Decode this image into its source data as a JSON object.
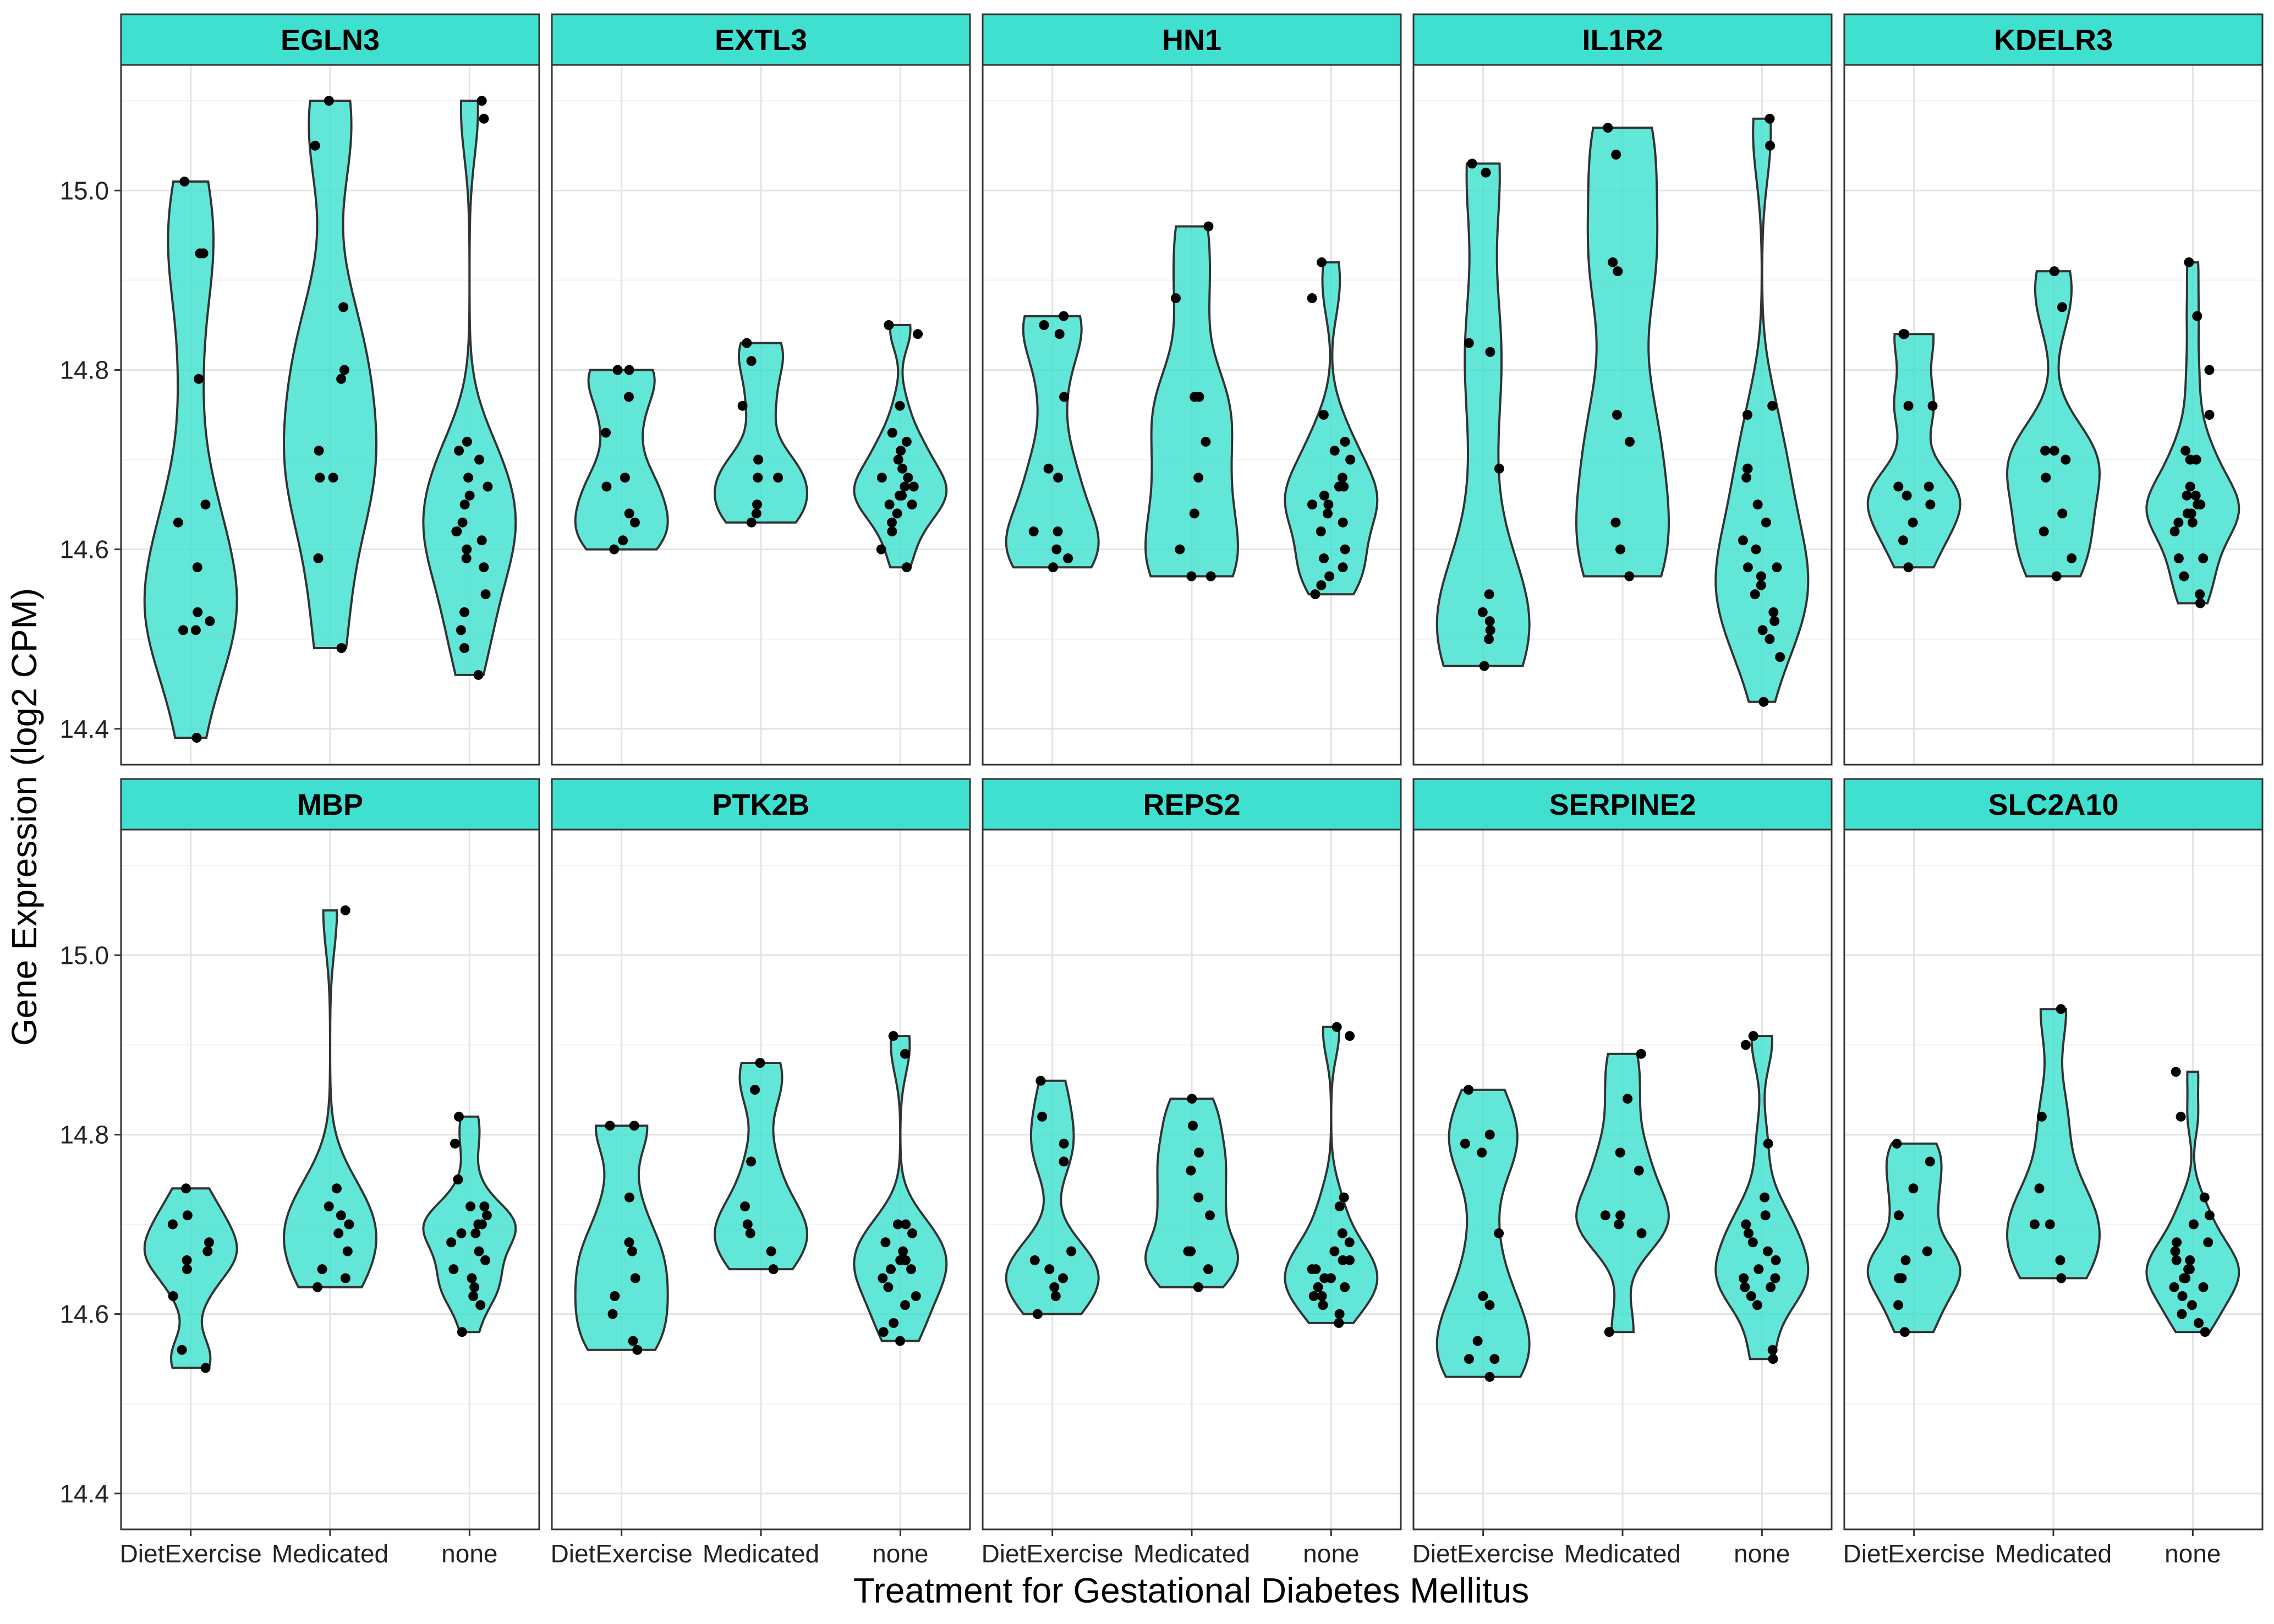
{
  "chart_data": {
    "type": "violin",
    "xlabel": "Treatment for Gestational Diabetes Mellitus",
    "ylabel": "Gene Expression (log2 CPM)",
    "categories": [
      "DietExercise",
      "Medicated",
      "none"
    ],
    "yticks": [
      14.4,
      14.6,
      14.8,
      15.0
    ],
    "ylim": [
      14.36,
      15.14
    ],
    "grid": true,
    "fill_color": "#40E0D0",
    "point_color": "#000000",
    "panels": [
      {
        "gene": "EGLN3",
        "groups": [
          [
            14.39,
            14.51,
            14.51,
            14.52,
            14.53,
            14.58,
            14.63,
            14.65,
            14.79,
            14.93,
            14.93,
            15.01
          ],
          [
            14.49,
            14.59,
            14.68,
            14.68,
            14.71,
            14.79,
            14.8,
            14.87,
            15.05,
            15.1
          ],
          [
            14.46,
            14.49,
            14.51,
            14.53,
            14.55,
            14.58,
            14.59,
            14.6,
            14.61,
            14.62,
            14.62,
            14.63,
            14.65,
            14.66,
            14.67,
            14.68,
            14.7,
            14.71,
            14.72,
            15.08,
            15.1
          ]
        ]
      },
      {
        "gene": "EXTL3",
        "groups": [
          [
            14.6,
            14.61,
            14.63,
            14.64,
            14.67,
            14.68,
            14.73,
            14.77,
            14.8,
            14.8
          ],
          [
            14.63,
            14.64,
            14.65,
            14.68,
            14.68,
            14.7,
            14.76,
            14.81,
            14.83
          ],
          [
            14.58,
            14.6,
            14.62,
            14.63,
            14.64,
            14.65,
            14.65,
            14.66,
            14.66,
            14.67,
            14.67,
            14.68,
            14.68,
            14.69,
            14.7,
            14.71,
            14.72,
            14.73,
            14.76,
            14.84,
            14.85
          ]
        ]
      },
      {
        "gene": "HN1",
        "groups": [
          [
            14.58,
            14.59,
            14.6,
            14.62,
            14.62,
            14.68,
            14.69,
            14.77,
            14.84,
            14.85,
            14.86
          ],
          [
            14.57,
            14.57,
            14.6,
            14.64,
            14.68,
            14.72,
            14.77,
            14.77,
            14.88,
            14.96
          ],
          [
            14.55,
            14.56,
            14.57,
            14.58,
            14.59,
            14.6,
            14.62,
            14.63,
            14.64,
            14.65,
            14.65,
            14.66,
            14.67,
            14.67,
            14.68,
            14.7,
            14.71,
            14.72,
            14.75,
            14.88,
            14.92
          ]
        ]
      },
      {
        "gene": "IL1R2",
        "groups": [
          [
            14.47,
            14.5,
            14.51,
            14.52,
            14.53,
            14.55,
            14.69,
            14.82,
            14.83,
            15.02,
            15.03
          ],
          [
            14.57,
            14.6,
            14.63,
            14.72,
            14.75,
            14.91,
            14.92,
            15.04,
            15.07
          ],
          [
            14.43,
            14.48,
            14.5,
            14.51,
            14.52,
            14.53,
            14.55,
            14.56,
            14.57,
            14.58,
            14.58,
            14.6,
            14.61,
            14.63,
            14.65,
            14.68,
            14.69,
            14.69,
            14.75,
            14.76,
            15.05,
            15.08
          ]
        ]
      },
      {
        "gene": "KDELR3",
        "groups": [
          [
            14.58,
            14.61,
            14.63,
            14.65,
            14.66,
            14.67,
            14.67,
            14.76,
            14.76,
            14.84,
            14.84
          ],
          [
            14.57,
            14.59,
            14.62,
            14.64,
            14.68,
            14.7,
            14.71,
            14.71,
            14.87,
            14.91
          ],
          [
            14.54,
            14.55,
            14.57,
            14.59,
            14.59,
            14.62,
            14.63,
            14.63,
            14.64,
            14.64,
            14.65,
            14.65,
            14.66,
            14.66,
            14.67,
            14.7,
            14.7,
            14.71,
            14.75,
            14.8,
            14.86,
            14.92
          ]
        ]
      },
      {
        "gene": "MBP",
        "groups": [
          [
            14.54,
            14.56,
            14.62,
            14.65,
            14.66,
            14.67,
            14.68,
            14.7,
            14.71,
            14.74
          ],
          [
            14.63,
            14.64,
            14.65,
            14.67,
            14.69,
            14.7,
            14.71,
            14.72,
            14.74,
            15.05
          ],
          [
            14.58,
            14.61,
            14.62,
            14.63,
            14.64,
            14.65,
            14.66,
            14.67,
            14.68,
            14.69,
            14.69,
            14.7,
            14.7,
            14.71,
            14.72,
            14.72,
            14.75,
            14.79,
            14.82
          ]
        ]
      },
      {
        "gene": "PTK2B",
        "groups": [
          [
            14.56,
            14.57,
            14.6,
            14.62,
            14.64,
            14.67,
            14.68,
            14.73,
            14.81,
            14.81
          ],
          [
            14.65,
            14.67,
            14.69,
            14.7,
            14.72,
            14.77,
            14.85,
            14.88
          ],
          [
            14.57,
            14.58,
            14.59,
            14.61,
            14.62,
            14.63,
            14.64,
            14.65,
            14.65,
            14.66,
            14.66,
            14.67,
            14.68,
            14.69,
            14.7,
            14.7,
            14.89,
            14.91
          ]
        ]
      },
      {
        "gene": "REPS2",
        "groups": [
          [
            14.6,
            14.62,
            14.63,
            14.64,
            14.65,
            14.66,
            14.67,
            14.77,
            14.79,
            14.82,
            14.86
          ],
          [
            14.63,
            14.65,
            14.67,
            14.67,
            14.71,
            14.73,
            14.76,
            14.78,
            14.81,
            14.84
          ],
          [
            14.59,
            14.6,
            14.61,
            14.62,
            14.62,
            14.63,
            14.63,
            14.64,
            14.64,
            14.65,
            14.65,
            14.66,
            14.66,
            14.67,
            14.68,
            14.69,
            14.72,
            14.73,
            14.91,
            14.92
          ]
        ]
      },
      {
        "gene": "SERPINE2",
        "groups": [
          [
            14.53,
            14.55,
            14.55,
            14.57,
            14.61,
            14.62,
            14.69,
            14.78,
            14.79,
            14.8,
            14.85
          ],
          [
            14.58,
            14.69,
            14.7,
            14.71,
            14.71,
            14.76,
            14.78,
            14.84,
            14.89
          ],
          [
            14.55,
            14.56,
            14.61,
            14.62,
            14.63,
            14.63,
            14.64,
            14.64,
            14.65,
            14.66,
            14.67,
            14.68,
            14.69,
            14.7,
            14.71,
            14.73,
            14.79,
            14.9,
            14.91
          ]
        ]
      },
      {
        "gene": "SLC2A10",
        "groups": [
          [
            14.58,
            14.61,
            14.64,
            14.64,
            14.66,
            14.67,
            14.71,
            14.74,
            14.77,
            14.79
          ],
          [
            14.64,
            14.66,
            14.7,
            14.7,
            14.74,
            14.82,
            14.94
          ],
          [
            14.58,
            14.59,
            14.6,
            14.61,
            14.62,
            14.63,
            14.63,
            14.64,
            14.64,
            14.65,
            14.65,
            14.66,
            14.66,
            14.67,
            14.68,
            14.68,
            14.7,
            14.71,
            14.73,
            14.82,
            14.87
          ]
        ]
      }
    ]
  }
}
